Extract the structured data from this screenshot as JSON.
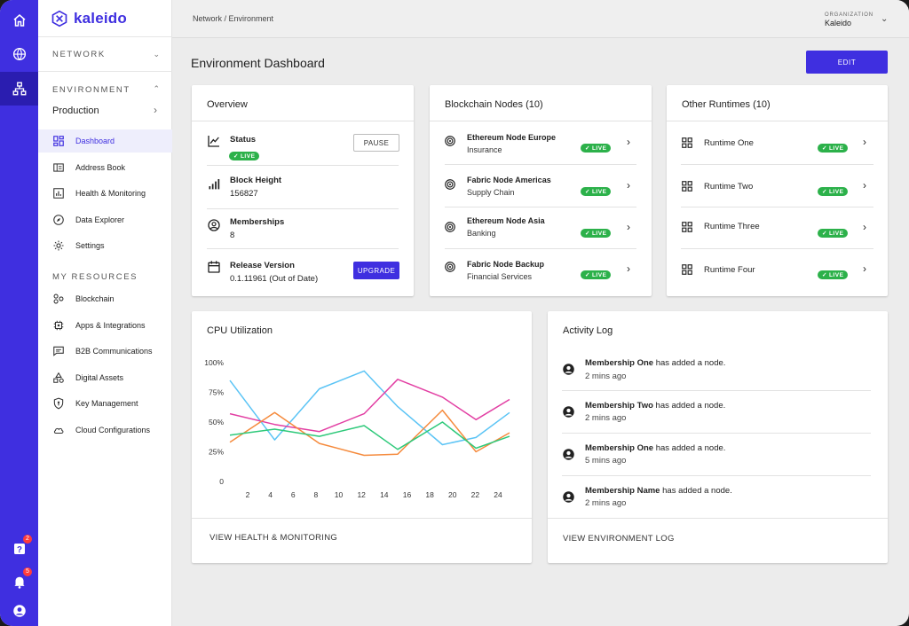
{
  "brand": {
    "name": "kaleido"
  },
  "rail": {
    "help_badge": "2",
    "notif_badge": "5"
  },
  "sidebar": {
    "network_label": "NETWORK",
    "environment_label": "ENVIRONMENT",
    "environment_value": "Production",
    "nav": [
      {
        "label": "Dashboard",
        "icon": "dashboard-icon",
        "active": true
      },
      {
        "label": "Address Book",
        "icon": "address-book-icon"
      },
      {
        "label": "Health & Monitoring",
        "icon": "health-icon"
      },
      {
        "label": "Data Explorer",
        "icon": "compass-icon"
      },
      {
        "label": "Settings",
        "icon": "gear-icon"
      }
    ],
    "resources_label": "MY RESOURCES",
    "resources": [
      {
        "label": "Blockchain",
        "icon": "blockchain-icon"
      },
      {
        "label": "Apps & Integrations",
        "icon": "chip-icon"
      },
      {
        "label": "B2B Communications",
        "icon": "chat-icon"
      },
      {
        "label": "Digital Assets",
        "icon": "assets-icon"
      },
      {
        "label": "Key Management",
        "icon": "key-shield-icon"
      },
      {
        "label": "Cloud Configurations",
        "icon": "cloud-icon"
      }
    ]
  },
  "topbar": {
    "breadcrumb": "Network  /  Environment",
    "org_label": "ORGANIZATION",
    "org_name": "Kaleido"
  },
  "page": {
    "title": "Environment Dashboard",
    "edit_label": "EDIT"
  },
  "overview": {
    "title": "Overview",
    "status_label": "Status",
    "status_value": "LIVE",
    "pause_label": "PAUSE",
    "block_height_label": "Block Height",
    "block_height_value": "156827",
    "memberships_label": "Memberships",
    "memberships_value": "8",
    "release_label": "Release Version",
    "release_value": "0.1.11961 (Out of Date)",
    "upgrade_label": "UPGRADE"
  },
  "nodes": {
    "title": "Blockchain Nodes (10)",
    "items": [
      {
        "name": "Ethereum Node Europe",
        "sub": "Insurance",
        "status": "LIVE"
      },
      {
        "name": "Fabric Node Americas",
        "sub": "Supply Chain",
        "status": "LIVE"
      },
      {
        "name": "Ethereum Node Asia",
        "sub": "Banking",
        "status": "LIVE"
      },
      {
        "name": "Fabric Node Backup",
        "sub": "Financial Services",
        "status": "LIVE"
      }
    ]
  },
  "runtimes": {
    "title": "Other Runtimes (10)",
    "items": [
      {
        "name": "Runtime One",
        "status": "LIVE"
      },
      {
        "name": "Runtime Two",
        "status": "LIVE"
      },
      {
        "name": "Runtime Three",
        "status": "LIVE"
      },
      {
        "name": "Runtime Four",
        "status": "LIVE"
      }
    ]
  },
  "cpu": {
    "title": "CPU Utilization",
    "footer": "VIEW HEALTH & MONITORING"
  },
  "chart_data": {
    "type": "line",
    "title": "CPU Utilization",
    "x": [
      0,
      4,
      8,
      12,
      15,
      19,
      22,
      25
    ],
    "xticks": [
      "2",
      "4",
      "6",
      "8",
      "10",
      "12",
      "14",
      "16",
      "18",
      "20",
      "22",
      "24"
    ],
    "yticks": [
      "0",
      "25%",
      "50%",
      "75%",
      "100%"
    ],
    "ylim": [
      0,
      100
    ],
    "xlim": [
      0,
      25
    ],
    "series": [
      {
        "color": "#5bc4f5",
        "x": [
          0,
          4,
          8,
          12,
          15,
          19,
          22,
          25
        ],
        "values": [
          85,
          35,
          78,
          93,
          63,
          31,
          37,
          58
        ]
      },
      {
        "color": "#e23fa3",
        "x": [
          0,
          4,
          8,
          12,
          15,
          19,
          22,
          25
        ],
        "values": [
          57,
          48,
          42,
          57,
          86,
          71,
          52,
          69
        ]
      },
      {
        "color": "#f58a3c",
        "x": [
          0,
          4,
          8,
          12,
          15,
          19,
          22,
          25
        ],
        "values": [
          33,
          58,
          32,
          22,
          23,
          60,
          25,
          41
        ]
      },
      {
        "color": "#2ec97a",
        "x": [
          0,
          4,
          8,
          12,
          15,
          19,
          22,
          25
        ],
        "values": [
          39,
          44,
          38,
          47,
          27,
          50,
          28,
          38
        ]
      }
    ],
    "grid": false,
    "legend": "none"
  },
  "activity": {
    "title": "Activity Log",
    "items": [
      {
        "who": "Membership One",
        "what": " has added a node.",
        "time": "2 mins ago"
      },
      {
        "who": "Membership Two",
        "what": " has added a node.",
        "time": "2 mins ago"
      },
      {
        "who": "Membership One",
        "what": " has added a node.",
        "time": "5 mins ago"
      },
      {
        "who": "Membership Name",
        "what": " has added a node.",
        "time": "2 mins ago"
      }
    ],
    "footer": "VIEW ENVIRONMENT LOG"
  },
  "colors": {
    "accent": "#3f2fe0",
    "live": "#2cb14a"
  }
}
